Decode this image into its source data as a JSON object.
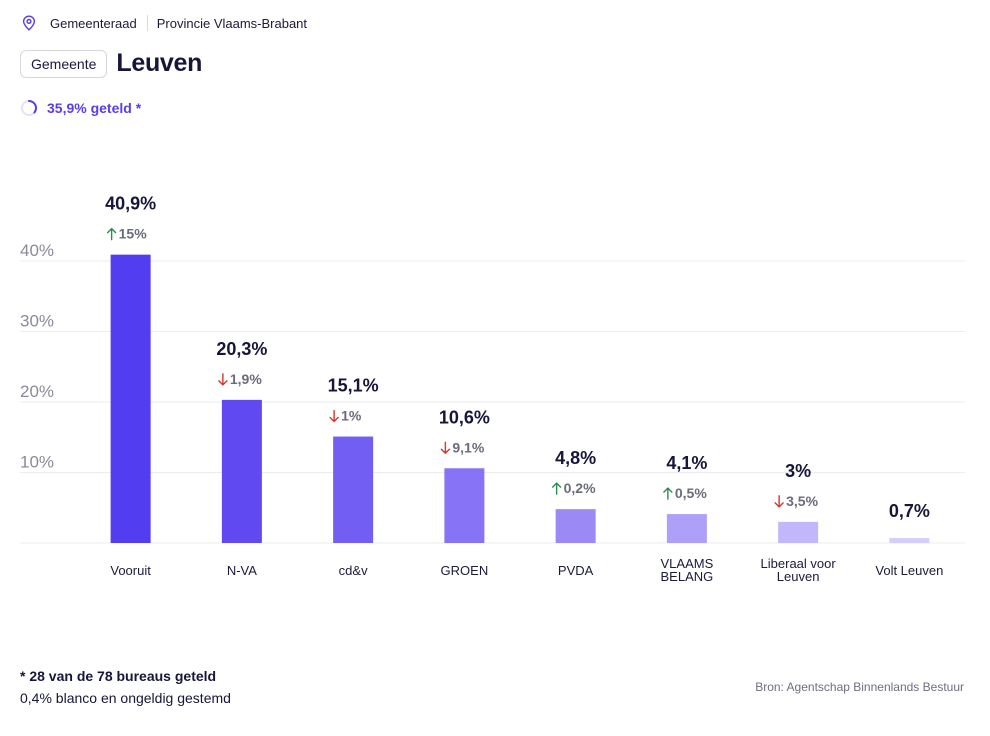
{
  "breadcrumb": {
    "items": [
      "Gemeenteraad",
      "Provincie Vlaams-Brabant"
    ]
  },
  "header": {
    "chip_label": "Gemeente",
    "title": "Leuven"
  },
  "progress": {
    "label": "35,9% geteld *",
    "fraction": 0.359
  },
  "colors": {
    "accent": "#5b3cec",
    "up": "#2e8b4e",
    "down": "#d2362e",
    "grid": "#ececf2",
    "axis_text": "#8a8a99"
  },
  "chart_data": {
    "type": "bar",
    "title": "",
    "xlabel": "",
    "ylabel": "",
    "ylim": [
      0,
      40
    ],
    "yticks": [
      10,
      20,
      30,
      40
    ],
    "ytick_labels": [
      "10%",
      "20%",
      "30%",
      "40%"
    ],
    "grid": true,
    "categories": [
      "Vooruit",
      "N-VA",
      "cd&v",
      "GROEN",
      "PVDA",
      "VLAAMS BELANG",
      "Liberaal voor Leuven",
      "Volt Leuven"
    ],
    "category_lines": [
      [
        "Vooruit"
      ],
      [
        "N-VA"
      ],
      [
        "cd&v"
      ],
      [
        "GROEN"
      ],
      [
        "PVDA"
      ],
      [
        "VLAAMS",
        "BELANG"
      ],
      [
        "Liberaal voor",
        "Leuven"
      ],
      [
        "Volt Leuven"
      ]
    ],
    "values": [
      40.9,
      20.3,
      15.1,
      10.6,
      4.8,
      4.1,
      3,
      0.7
    ],
    "value_labels": [
      "40,9%",
      "20,3%",
      "15,1%",
      "10,6%",
      "4,8%",
      "4,1%",
      "3%",
      "0,7%"
    ],
    "changes": [
      {
        "dir": "up",
        "label": "15%"
      },
      {
        "dir": "down",
        "label": "1,9%"
      },
      {
        "dir": "down",
        "label": "1%"
      },
      {
        "dir": "down",
        "label": "9,1%"
      },
      {
        "dir": "up",
        "label": "0,2%"
      },
      {
        "dir": "up",
        "label": "0,5%"
      },
      {
        "dir": "down",
        "label": "3,5%"
      },
      null
    ],
    "bar_colors": [
      "#533df0",
      "#6149f1",
      "#735ef3",
      "#8773f5",
      "#9b89f6",
      "#ae9ff8",
      "#c2b7fa",
      "#d4cefc"
    ]
  },
  "footer": {
    "note": "* 28 van de 78 bureaus geteld",
    "blanco": "0,4% blanco en ongeldig gestemd",
    "source": "Bron: Agentschap Binnenlands Bestuur"
  }
}
